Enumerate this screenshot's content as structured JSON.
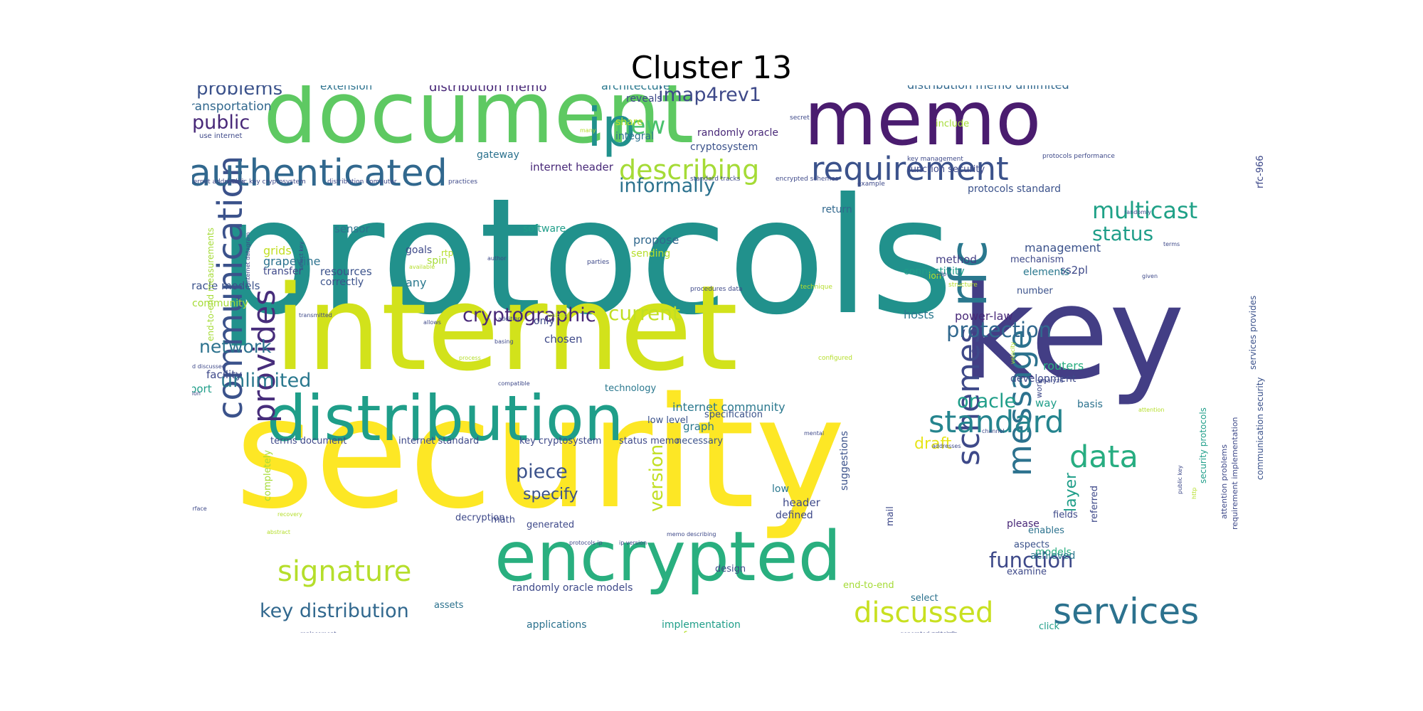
{
  "title": "Cluster 13",
  "palette": [
    "#440154",
    "#472d7b",
    "#3b528b",
    "#2c728e",
    "#21918c",
    "#28ae80",
    "#5ec962",
    "#addc30",
    "#fde725"
  ],
  "words": [
    {
      "text": "protocols",
      "color": "#21918c"
    },
    {
      "text": "security",
      "color": "#fde725"
    },
    {
      "text": "internet",
      "color": "#d2e21b"
    },
    {
      "text": "key",
      "color": "#433e85"
    },
    {
      "text": "document",
      "color": "#5ec962"
    },
    {
      "text": "memo",
      "color": "#4a1c6f"
    },
    {
      "text": "distribution",
      "color": "#1f9e89"
    },
    {
      "text": "encrypted",
      "color": "#29af7f"
    },
    {
      "text": "ip",
      "color": "#21918c"
    },
    {
      "text": "rfc",
      "color": "#2a788e"
    },
    {
      "text": "communication",
      "color": "#3b528b"
    },
    {
      "text": "authenticated",
      "color": "#31688e"
    },
    {
      "text": "provides",
      "color": "#472d7b"
    },
    {
      "text": "message",
      "color": "#2c728e"
    },
    {
      "text": "services",
      "color": "#2c728e"
    },
    {
      "text": "schemes",
      "color": "#3e4989"
    },
    {
      "text": "requirement",
      "color": "#3b528b"
    },
    {
      "text": "describing",
      "color": "#a5db36"
    },
    {
      "text": "standard",
      "color": "#25848e"
    },
    {
      "text": "signature",
      "color": "#b5de2b"
    },
    {
      "text": "discussed",
      "color": "#c8e020"
    },
    {
      "text": "data",
      "color": "#27ad81"
    },
    {
      "text": "new",
      "color": "#4ac16d"
    },
    {
      "text": "cryptographic",
      "color": "#482878"
    },
    {
      "text": "key distribution",
      "color": "#31688e"
    },
    {
      "text": "imap4rev1",
      "color": "#3e4989"
    },
    {
      "text": "multicast",
      "color": "#1fa187"
    },
    {
      "text": "informally",
      "color": "#2c728e"
    },
    {
      "text": "problems",
      "color": "#3b528b"
    },
    {
      "text": "public",
      "color": "#482878"
    },
    {
      "text": "network",
      "color": "#2c728e"
    },
    {
      "text": "unlimited",
      "color": "#2a788e"
    },
    {
      "text": "function",
      "color": "#3e4989"
    },
    {
      "text": "protection",
      "color": "#31688e"
    },
    {
      "text": "current",
      "color": "#c2df23"
    },
    {
      "text": "status",
      "color": "#1f9e89"
    },
    {
      "text": "oracle",
      "color": "#1f9e89"
    },
    {
      "text": "piece",
      "color": "#3b528b"
    },
    {
      "text": "version",
      "color": "#c2df23"
    },
    {
      "text": "layer",
      "color": "#1f9e89"
    },
    {
      "text": "draft",
      "color": "#e7e419"
    },
    {
      "text": "specify",
      "color": "#3b528b"
    },
    {
      "text": "distribution memo",
      "color": "#482878"
    },
    {
      "text": "distribution memo unlimited",
      "color": "#31688e"
    },
    {
      "text": "transportation",
      "color": "#31688e"
    },
    {
      "text": "extension",
      "color": "#2c728e"
    },
    {
      "text": "architecture",
      "color": "#2a788e"
    },
    {
      "text": "reveals",
      "color": "#3e4989"
    },
    {
      "text": "integral",
      "color": "#2c728e"
    },
    {
      "text": "share",
      "color": "#b5de2b"
    },
    {
      "text": "randomly oracle",
      "color": "#482878"
    },
    {
      "text": "cryptosystem",
      "color": "#3b528b"
    },
    {
      "text": "gateway",
      "color": "#2c728e"
    },
    {
      "text": "internet header",
      "color": "#482878"
    },
    {
      "text": "include",
      "color": "#a5db36"
    },
    {
      "text": "function security",
      "color": "#3e4989"
    },
    {
      "text": "protocols standard",
      "color": "#3b528b"
    },
    {
      "text": "return",
      "color": "#31688e"
    },
    {
      "text": "ss2pl",
      "color": "#3e4989"
    },
    {
      "text": "management",
      "color": "#3b528b"
    },
    {
      "text": "method",
      "color": "#433e85"
    },
    {
      "text": "mechanism",
      "color": "#3e4989"
    },
    {
      "text": "connectivity",
      "color": "#1f9e89"
    },
    {
      "text": "elements",
      "color": "#2a788e"
    },
    {
      "text": "number",
      "color": "#3b528b"
    },
    {
      "text": "hosts",
      "color": "#2a788e"
    },
    {
      "text": "power-law",
      "color": "#482878"
    },
    {
      "text": "routers",
      "color": "#28ae80"
    },
    {
      "text": "development",
      "color": "#3e4989"
    },
    {
      "text": "way",
      "color": "#1f9e89"
    },
    {
      "text": "basis",
      "color": "#2c728e"
    },
    {
      "text": "sensor",
      "color": "#2c728e"
    },
    {
      "text": "goals",
      "color": "#3e4989"
    },
    {
      "text": "software",
      "color": "#1f9e89"
    },
    {
      "text": "propose",
      "color": "#31688e"
    },
    {
      "text": "sending",
      "color": "#b5de2b"
    },
    {
      "text": "grapevine",
      "color": "#2c728e"
    },
    {
      "text": "grids",
      "color": "#c2df23"
    },
    {
      "text": "transfer",
      "color": "#3e4989"
    },
    {
      "text": "resources",
      "color": "#3b528b"
    },
    {
      "text": "correctly",
      "color": "#3b528b"
    },
    {
      "text": "spin",
      "color": "#a5db36"
    },
    {
      "text": "any",
      "color": "#2a788e"
    },
    {
      "text": "oracle models",
      "color": "#3b528b"
    },
    {
      "text": "community",
      "color": "#a5db36"
    },
    {
      "text": "support",
      "color": "#1f9e89"
    },
    {
      "text": "facility",
      "color": "#3e4989"
    },
    {
      "text": "only",
      "color": "#3e4989"
    },
    {
      "text": "chosen",
      "color": "#3e4989"
    },
    {
      "text": "technology",
      "color": "#2a788e"
    },
    {
      "text": "internet community",
      "color": "#2a788e"
    },
    {
      "text": "low level",
      "color": "#3b528b"
    },
    {
      "text": "specification",
      "color": "#3b528b"
    },
    {
      "text": "graph",
      "color": "#2a788e"
    },
    {
      "text": "necessary",
      "color": "#3b528b"
    },
    {
      "text": "terms document",
      "color": "#3e4989"
    },
    {
      "text": "internet standard",
      "color": "#3e4989"
    },
    {
      "text": "key cryptosystem",
      "color": "#3e4989"
    },
    {
      "text": "status memo",
      "color": "#3e4989"
    },
    {
      "text": "suggestions",
      "color": "#3b528b"
    },
    {
      "text": "mail",
      "color": "#3e4989"
    },
    {
      "text": "design",
      "color": "#3e4989"
    },
    {
      "text": "low",
      "color": "#2a788e"
    },
    {
      "text": "header",
      "color": "#3e4989"
    },
    {
      "text": "defined",
      "color": "#3e4989"
    },
    {
      "text": "decryption",
      "color": "#3e4989"
    },
    {
      "text": "math",
      "color": "#3e4989"
    },
    {
      "text": "generated",
      "color": "#3e4989"
    },
    {
      "text": "randomly oracle models",
      "color": "#3e4989"
    },
    {
      "text": "assets",
      "color": "#2c728e"
    },
    {
      "text": "applications",
      "color": "#2c728e"
    },
    {
      "text": "implementation",
      "color": "#1f9e89"
    },
    {
      "text": "performance",
      "color": "#b5de2b"
    },
    {
      "text": "internet draft",
      "color": "#3e4989"
    },
    {
      "text": "use encrypted",
      "color": "#2c728e"
    },
    {
      "text": "memo unlimited",
      "color": "#1f9e89"
    },
    {
      "text": "measurements",
      "color": "#3e4989"
    },
    {
      "text": "end-to-end",
      "color": "#a5db36"
    },
    {
      "text": "select",
      "color": "#2c728e"
    },
    {
      "text": "click",
      "color": "#1f9e89"
    },
    {
      "text": "models",
      "color": "#28ae80"
    },
    {
      "text": "examine",
      "color": "#3e4989"
    },
    {
      "text": "referred",
      "color": "#3e4989"
    },
    {
      "text": "fields",
      "color": "#3e4989"
    },
    {
      "text": "please",
      "color": "#482878"
    },
    {
      "text": "enables",
      "color": "#2c728e"
    },
    {
      "text": "aspects",
      "color": "#3b528b"
    },
    {
      "text": "achieved",
      "color": "#2a788e"
    },
    {
      "text": "level",
      "color": "#3e4989"
    },
    {
      "text": "work",
      "color": "#3e4989"
    },
    {
      "text": "completely",
      "color": "#a5db36"
    },
    {
      "text": "end-to-end measurements",
      "color": "#a5db36"
    },
    {
      "text": "communication security",
      "color": "#3b528b"
    },
    {
      "text": "authenticated protocols",
      "color": "#31688e"
    },
    {
      "text": "security protocols",
      "color": "#1f9e89"
    },
    {
      "text": "attention problems",
      "color": "#3e4989"
    },
    {
      "text": "requirement implementation",
      "color": "#3e4989"
    },
    {
      "text": "services provides",
      "color": "#3b528b"
    },
    {
      "text": "rfc-966",
      "color": "#3e4989"
    },
    {
      "text": "communication computer",
      "color": "#3e4989"
    },
    {
      "text": "use internet",
      "color": "#3e4989"
    },
    {
      "text": "internet addresses",
      "color": "#3e4989"
    },
    {
      "text": "public key cryptosystem",
      "color": "#3e4989"
    },
    {
      "text": "distribution computer",
      "color": "#3e4989"
    },
    {
      "text": "practices",
      "color": "#3e4989"
    },
    {
      "text": "standard tracks",
      "color": "#3e4989"
    },
    {
      "text": "encrypted schemes",
      "color": "#3e4989"
    },
    {
      "text": "example",
      "color": "#3e4989"
    },
    {
      "text": "key management",
      "color": "#3e4989"
    },
    {
      "text": "protocols performance",
      "color": "#3e4989"
    },
    {
      "text": "secret",
      "color": "#3e4989"
    },
    {
      "text": "microsensor",
      "color": "#3e4989"
    },
    {
      "text": "obsolete",
      "color": "#3e4989"
    },
    {
      "text": "see www",
      "color": "#3e4989"
    },
    {
      "text": "randomly",
      "color": "#3e4989"
    },
    {
      "text": "terms",
      "color": "#3e4989"
    },
    {
      "text": "given",
      "color": "#3e4989"
    },
    {
      "text": "ion",
      "color": "#b5de2b"
    },
    {
      "text": "rtp",
      "color": "#b5de2b"
    },
    {
      "text": "author",
      "color": "#3e4989"
    },
    {
      "text": "parties",
      "color": "#3e4989"
    },
    {
      "text": "procedures data",
      "color": "#3e4989"
    },
    {
      "text": "technique",
      "color": "#b5de2b"
    },
    {
      "text": "structure",
      "color": "#b5de2b"
    },
    {
      "text": "configured",
      "color": "#b5de2b"
    },
    {
      "text": "analyze",
      "color": "#3e4989"
    },
    {
      "text": "attention",
      "color": "#b5de2b"
    },
    {
      "text": "channel",
      "color": "#3e4989"
    },
    {
      "text": "addresses",
      "color": "#3e4989"
    },
    {
      "text": "mental",
      "color": "#3e4989"
    },
    {
      "text": "transmitted",
      "color": "#3e4989"
    },
    {
      "text": "addition",
      "color": "#3e4989"
    },
    {
      "text": "cognition",
      "color": "#3e4989"
    },
    {
      "text": "defined discussed",
      "color": "#3e4989"
    },
    {
      "text": "compatible",
      "color": "#3e4989"
    },
    {
      "text": "interface",
      "color": "#3e4989"
    },
    {
      "text": "recovery",
      "color": "#b5de2b"
    },
    {
      "text": "abstract",
      "color": "#b5de2b"
    },
    {
      "text": "replacement",
      "color": "#3e4989"
    },
    {
      "text": "memo describing",
      "color": "#3e4989"
    },
    {
      "text": "protocols ip",
      "color": "#3e4989"
    },
    {
      "text": "ip version",
      "color": "#3e4989"
    },
    {
      "text": "generated protocols",
      "color": "#3e4989"
    },
    {
      "text": "principle",
      "color": "#3e4989"
    },
    {
      "text": "conventional",
      "color": "#3e4989"
    },
    {
      "text": "public key",
      "color": "#3e4989"
    },
    {
      "text": "http",
      "color": "#b5de2b"
    },
    {
      "text": "process",
      "color": "#b5de2b"
    },
    {
      "text": "basing",
      "color": "#3e4989"
    },
    {
      "text": "unique",
      "color": "#b5de2b"
    },
    {
      "text": "allows",
      "color": "#3e4989"
    },
    {
      "text": "available",
      "color": "#b5de2b"
    },
    {
      "text": "udp",
      "color": "#3e4989"
    },
    {
      "text": "dats",
      "color": "#3e4989"
    },
    {
      "text": "velocity",
      "color": "#b5de2b"
    },
    {
      "text": "many",
      "color": "#b5de2b"
    },
    {
      "text": "internet datagram",
      "color": "#3e4989"
    },
    {
      "text": "select key",
      "color": "#3e4989"
    }
  ]
}
